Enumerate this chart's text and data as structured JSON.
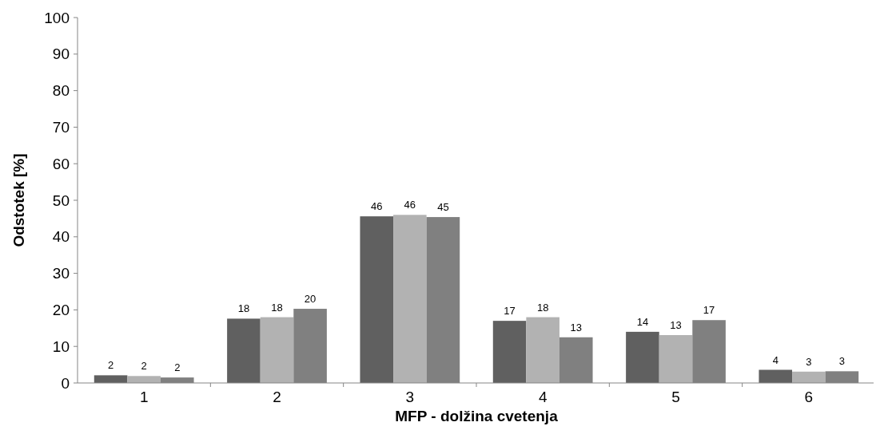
{
  "chart_data": {
    "type": "bar",
    "xlabel": "MFP - dolžina cvetenja",
    "ylabel": "Odstotek [%]",
    "categories": [
      "1",
      "2",
      "3",
      "4",
      "5",
      "6"
    ],
    "ylim": [
      0,
      100
    ],
    "yticks": [
      0,
      10,
      20,
      30,
      40,
      50,
      60,
      70,
      80,
      90,
      100
    ],
    "grid": false,
    "series": [
      {
        "color": "#606060",
        "values": [
          2.1,
          17.6,
          45.6,
          17,
          14,
          3.6
        ],
        "value_labels": [
          "2",
          "18",
          "46",
          "17",
          "14",
          "4"
        ]
      },
      {
        "color": "#b2b2b2",
        "values": [
          1.9,
          18,
          46,
          18,
          13.1,
          3.1
        ],
        "value_labels": [
          "2",
          "18",
          "46",
          "18",
          "13",
          "3"
        ]
      },
      {
        "color": "#808080",
        "values": [
          1.5,
          20.3,
          45.4,
          12.5,
          17.2,
          3.2
        ],
        "value_labels": [
          "2",
          "20",
          "45",
          "13",
          "17",
          "3"
        ]
      }
    ]
  }
}
